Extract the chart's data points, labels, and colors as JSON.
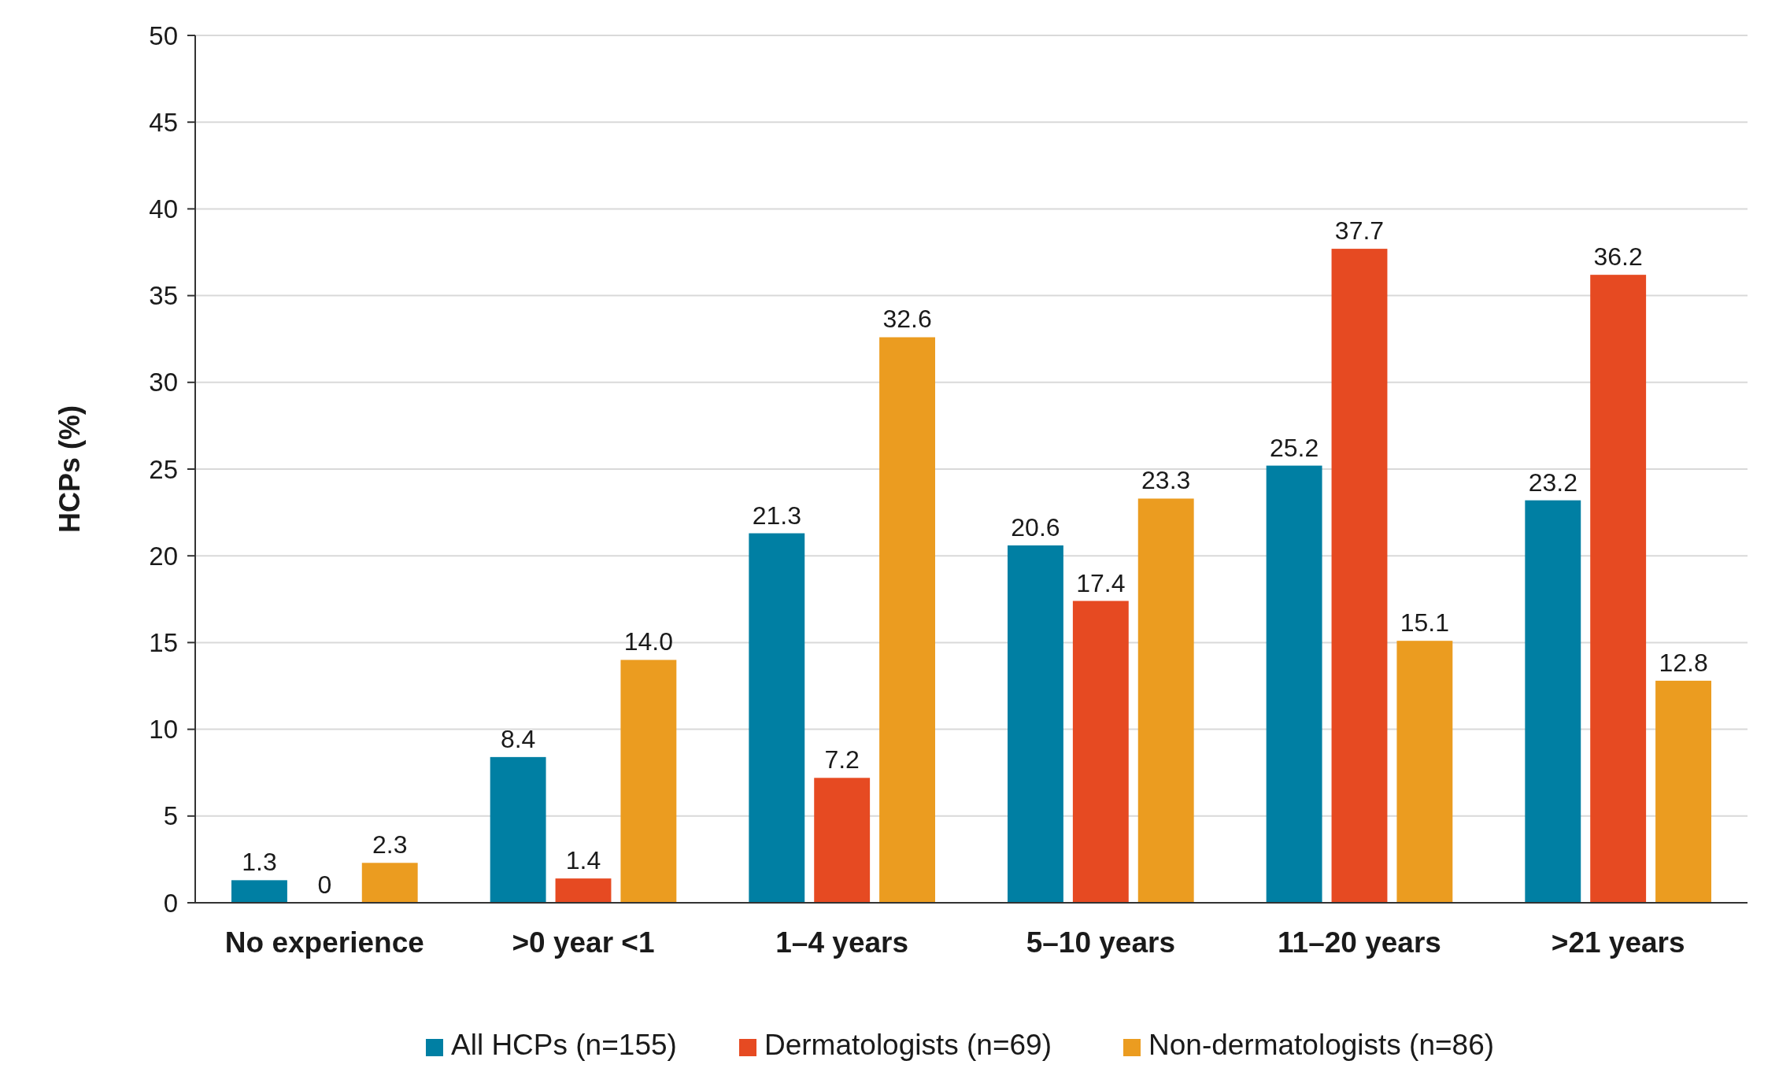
{
  "chart_data": {
    "type": "bar",
    "ylabel": "HCPs (%)",
    "categories": [
      "No experience",
      ">0 year <1",
      "1–4 years",
      "5–10 years",
      "11–20 years",
      ">21 years"
    ],
    "series": [
      {
        "name": "All HCPs (n=155)",
        "color": "#007fa3",
        "values": [
          1.3,
          8.4,
          21.3,
          20.6,
          25.2,
          23.2
        ],
        "value_labels": [
          "1.3",
          "8.4",
          "21.3",
          "20.6",
          "25.2",
          "23.2"
        ]
      },
      {
        "name": "Dermatologists (n=69)",
        "color": "#e64a22",
        "values": [
          0,
          1.4,
          7.2,
          17.4,
          37.7,
          36.2
        ],
        "value_labels": [
          "0",
          "1.4",
          "7.2",
          "17.4",
          "37.7",
          "36.2"
        ]
      },
      {
        "name": "Non-dermatologists (n=86)",
        "color": "#eb9c20",
        "values": [
          2.3,
          14.0,
          32.6,
          23.3,
          15.1,
          12.8
        ],
        "value_labels": [
          "2.3",
          "14.0",
          "32.6",
          "23.3",
          "15.1",
          "12.8"
        ]
      }
    ],
    "ylim": [
      0,
      50
    ],
    "yticks": [
      0,
      5,
      10,
      15,
      20,
      25,
      30,
      35,
      40,
      45,
      50
    ],
    "grid": "y",
    "legend": "bottom"
  }
}
